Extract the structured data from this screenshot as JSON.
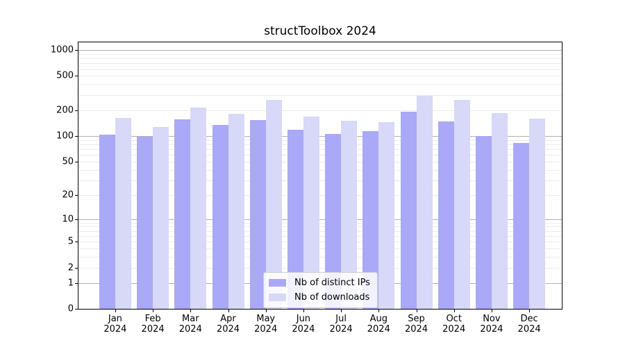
{
  "figure": {
    "title": "structToolbox 2024"
  },
  "chart_data": {
    "type": "bar",
    "title": "structToolbox 2024",
    "categories": [
      "Jan 2024",
      "Feb 2024",
      "Mar 2024",
      "Apr 2024",
      "May 2024",
      "Jun 2024",
      "Jul 2024",
      "Aug 2024",
      "Sep 2024",
      "Oct 2024",
      "Nov 2024",
      "Dec 2024"
    ],
    "x_tick_lines": [
      {
        "month": "Jan",
        "year": "2024"
      },
      {
        "month": "Feb",
        "year": "2024"
      },
      {
        "month": "Mar",
        "year": "2024"
      },
      {
        "month": "Apr",
        "year": "2024"
      },
      {
        "month": "May",
        "year": "2024"
      },
      {
        "month": "Jun",
        "year": "2024"
      },
      {
        "month": "Jul",
        "year": "2024"
      },
      {
        "month": "Aug",
        "year": "2024"
      },
      {
        "month": "Sep",
        "year": "2024"
      },
      {
        "month": "Oct",
        "year": "2024"
      },
      {
        "month": "Nov",
        "year": "2024"
      },
      {
        "month": "Dec",
        "year": "2024"
      }
    ],
    "series": [
      {
        "name": "Nb of distinct IPs",
        "color": "#a9a9f7",
        "values": [
          103,
          98,
          155,
          135,
          153,
          118,
          106,
          114,
          193,
          148,
          100,
          83
        ]
      },
      {
        "name": "Nb of downloads",
        "color": "#d8d8f8",
        "values": [
          161,
          128,
          213,
          180,
          263,
          168,
          150,
          146,
          295,
          264,
          185,
          160
        ]
      }
    ],
    "y_axis": {
      "scale": "log10(1+v)",
      "tick_labels": [
        "1000",
        "500",
        "200",
        "100",
        "50",
        "20",
        "10",
        "5",
        "2",
        "1",
        "0"
      ],
      "tick_values": [
        1000,
        500,
        200,
        100,
        50,
        20,
        10,
        5,
        2,
        1,
        0
      ],
      "major_gridlines": [
        1,
        10,
        100,
        1000
      ],
      "minor_gridline_bases": [
        1,
        10,
        100
      ],
      "ylim": [
        0,
        1236
      ]
    },
    "xlabel": "",
    "ylabel": "",
    "grid": true,
    "legend": {
      "position": "bottom-center"
    }
  },
  "colors": {
    "bar_ips": "#a9a9f7",
    "bar_downloads": "#d8d8f8",
    "grid_major": "#b0b0b0",
    "grid_minor": "#ebebeb",
    "axis": "#000000",
    "legend_border": "#cccccc",
    "background": "#ffffff"
  }
}
